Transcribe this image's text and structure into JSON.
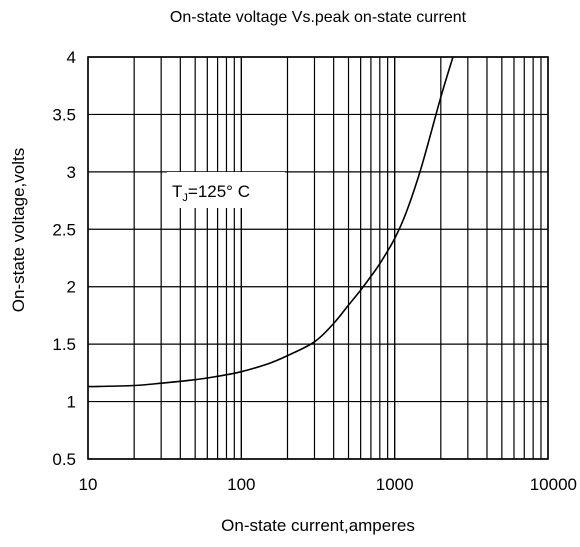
{
  "chart_data": {
    "type": "line",
    "title": "On-state voltage Vs.peak on-state current",
    "xlabel": "On-state current,amperes",
    "ylabel": "On-state voltage,volts",
    "x_scale": "log",
    "xlim": [
      10,
      10000
    ],
    "ylim": [
      0.5,
      4
    ],
    "x_ticks": [
      10,
      100,
      1000,
      10000
    ],
    "x_tick_labels": [
      "10",
      "100",
      "1000",
      "10000"
    ],
    "y_ticks": [
      0.5,
      1,
      1.5,
      2,
      2.5,
      3,
      3.5,
      4
    ],
    "y_tick_labels": [
      "0.5",
      "1",
      "1.5",
      "2",
      "2.5",
      "3",
      "3.5",
      "4"
    ],
    "grid": true,
    "annotation": {
      "T": "T",
      "sub": "J",
      "rest": "=125° C"
    },
    "series": [
      {
        "x": [
          10,
          20,
          30,
          50,
          70,
          100,
          150,
          200,
          300,
          400,
          500,
          600,
          700,
          800,
          1000,
          1200,
          1500,
          2000,
          2400
        ],
        "y": [
          1.13,
          1.14,
          1.16,
          1.19,
          1.22,
          1.26,
          1.33,
          1.4,
          1.52,
          1.68,
          1.84,
          1.97,
          2.09,
          2.2,
          2.42,
          2.66,
          3.05,
          3.65,
          4.0
        ]
      }
    ]
  }
}
